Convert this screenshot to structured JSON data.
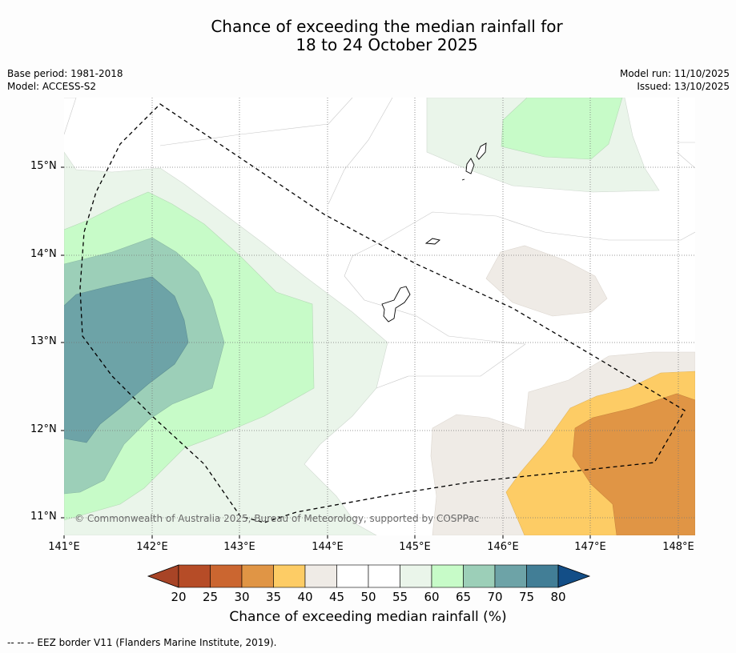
{
  "title": {
    "line1": "Chance of exceeding the median rainfall for",
    "line2": "18 to 24 October 2025"
  },
  "meta": {
    "base_period": "Base period: 1981-2018",
    "model": "Model: ACCESS-S2",
    "model_run": "Model run: 11/10/2025",
    "issued": "Issued: 13/10/2025"
  },
  "axes": {
    "lat_labels": [
      "15°N",
      "14°N",
      "13°N",
      "12°N",
      "11°N"
    ],
    "lon_labels": [
      "141°E",
      "142°E",
      "143°E",
      "144°E",
      "145°E",
      "146°E",
      "147°E",
      "148°E"
    ]
  },
  "copyright": "© Commonwealth of Australia 2025, Bureau of Meteorology, supported by COSPPac",
  "colorbar": {
    "ticks": [
      "20",
      "25",
      "30",
      "35",
      "40",
      "45",
      "50",
      "55",
      "60",
      "65",
      "70",
      "75",
      "80"
    ],
    "colors": [
      "#a84426",
      "#b64c27",
      "#cb6630",
      "#e09545",
      "#fdcc65",
      "#efebe6",
      "#ffffff",
      "#ffffff",
      "#eaf5ea",
      "#c7fbc8",
      "#9ccfb8",
      "#6da3a7",
      "#427e96",
      "#134e87"
    ],
    "label": "Chance of exceeding median rainfall (%)"
  },
  "footnote": "-- -- -- EEZ border V11 (Flanders Marine Institute, 2019)."
}
